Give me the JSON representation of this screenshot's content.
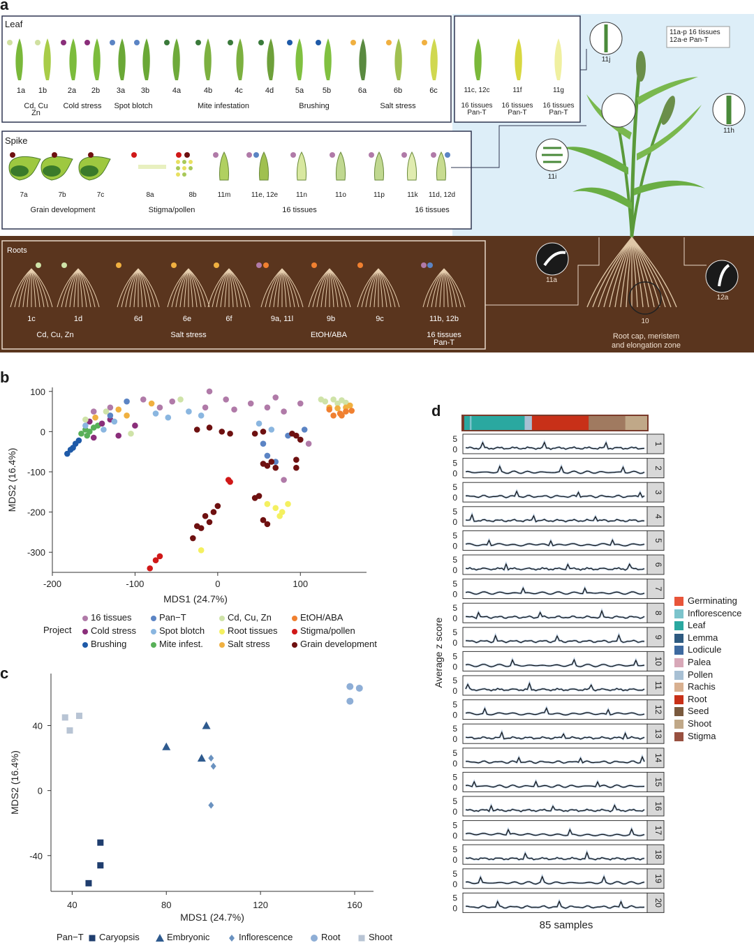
{
  "panel_a": {
    "letter": "a",
    "leaf": {
      "title": "Leaf",
      "samples": [
        "1a",
        "1b",
        "2a",
        "2b",
        "3a",
        "3b",
        "4a",
        "4b",
        "4c",
        "4d",
        "5a",
        "5b",
        "6a",
        "6b",
        "6c"
      ],
      "groups": [
        "Cd, Cu\nZn",
        "Cold stress",
        "Spot blotch",
        "Mite infestation",
        "Brushing",
        "Salt stress"
      ]
    },
    "leaf_pan": {
      "samples": [
        "11c, 12c",
        "11f",
        "11g"
      ],
      "groups": [
        "16 tissues\nPan-T",
        "16 tissues\nPan-T",
        "16 tissues\nPan-T"
      ]
    },
    "spike": {
      "title": "Spike",
      "samples": [
        "7a",
        "7b",
        "7c",
        "8a",
        "8b",
        "11m",
        "11e, 12e",
        "11n",
        "11o",
        "11p",
        "11k",
        "11d, 12d"
      ],
      "groups": [
        "Grain development",
        "Stigma/pollen",
        "16 tissues",
        "16 tissues"
      ]
    },
    "roots": {
      "title": "Roots",
      "samples": [
        "1c",
        "1d",
        "6d",
        "6e",
        "6f",
        "9a, 11l",
        "9b",
        "9c",
        "11b, 12b"
      ],
      "groups": [
        "Cd, Cu, Zn",
        "Salt stress",
        "EtOH/ABA",
        "16 tissues\nPan-T"
      ]
    },
    "plant": {
      "note": "11a-p 16 tissues\n12a-e Pan-T",
      "callouts": [
        "11j",
        "11h",
        "11i",
        "11a",
        "10",
        "12a"
      ],
      "root_label": "Root cap, meristem\nand elongation zone"
    }
  },
  "panel_b": {
    "letter": "b",
    "legend_title": "Project",
    "legend": [
      {
        "name": "16 tissues",
        "color": "#b07aa8"
      },
      {
        "name": "Pan−T",
        "color": "#5b84c4"
      },
      {
        "name": "Cd, Cu, Zn",
        "color": "#cfe3a8"
      },
      {
        "name": "EtOH/ABA",
        "color": "#f08030"
      },
      {
        "name": "Cold stress",
        "color": "#8a2e7a"
      },
      {
        "name": "Spot blotch",
        "color": "#8ab6e0"
      },
      {
        "name": "Root tissues",
        "color": "#f4f060"
      },
      {
        "name": "Stigma/pollen",
        "color": "#d01818"
      },
      {
        "name": "Brushing",
        "color": "#1e5aa8"
      },
      {
        "name": "Mite infest.",
        "color": "#58b058"
      },
      {
        "name": "Salt stress",
        "color": "#f0b040"
      },
      {
        "name": "Grain development",
        "color": "#6e1010"
      }
    ]
  },
  "panel_c": {
    "letter": "c",
    "legend_title": "Pan−T",
    "legend": [
      {
        "name": "Caryopsis",
        "shape": "square",
        "color": "#1f3d6e"
      },
      {
        "name": "Embryonic",
        "shape": "triangle",
        "color": "#2e5a8e"
      },
      {
        "name": "Inflorescence",
        "shape": "diamond",
        "color": "#6a92c0"
      },
      {
        "name": "Root",
        "shape": "circle",
        "color": "#8eaed6"
      },
      {
        "name": "Shoot",
        "shape": "square",
        "color": "#b8c4d4"
      }
    ]
  },
  "panel_d": {
    "letter": "d",
    "ylabel": "Average z score",
    "xlabel": "85 samples",
    "tick_top": "5",
    "tick_bottom": "0",
    "clusters": [
      "1",
      "2",
      "3",
      "4",
      "5",
      "6",
      "7",
      "8",
      "9",
      "10",
      "11",
      "12",
      "13",
      "14",
      "15",
      "16",
      "17",
      "18",
      "19",
      "20"
    ],
    "legend": [
      {
        "name": "Germinating",
        "color": "#e8553a"
      },
      {
        "name": "Inflorescence",
        "color": "#7cc4cc"
      },
      {
        "name": "Leaf",
        "color": "#2aa8a0"
      },
      {
        "name": "Lemma",
        "color": "#2e5a80"
      },
      {
        "name": "Lodicule",
        "color": "#3e6aa0"
      },
      {
        "name": "Palea",
        "color": "#d8a8b8"
      },
      {
        "name": "Pollen",
        "color": "#a8c0d4"
      },
      {
        "name": "Rachis",
        "color": "#d8b090"
      },
      {
        "name": "Root",
        "color": "#c83018"
      },
      {
        "name": "Seed",
        "color": "#7a5a3e"
      },
      {
        "name": "Shoot",
        "color": "#c0a888"
      },
      {
        "name": "Stigma",
        "color": "#985040"
      }
    ]
  },
  "chart_data": [
    {
      "type": "scatter",
      "panel": "b",
      "xlabel": "MDS1 (24.7%)",
      "ylabel": "MDS2 (16.4%)",
      "xlim": [
        -200,
        180
      ],
      "ylim": [
        -350,
        110
      ],
      "xticks": [
        -200,
        -100,
        0,
        100
      ],
      "yticks": [
        100,
        0,
        -100,
        -200,
        -300
      ],
      "series": [
        {
          "name": "Brushing",
          "points": [
            [
              -182,
              -55
            ],
            [
              -178,
              -45
            ],
            [
              -175,
              -40
            ],
            [
              -172,
              -30
            ],
            [
              -168,
              -22
            ]
          ]
        },
        {
          "name": "Mite infest.",
          "points": [
            [
              -165,
              -5
            ],
            [
              -160,
              5
            ],
            [
              -158,
              -10
            ],
            [
              -155,
              0
            ],
            [
              -150,
              10
            ],
            [
              -145,
              15
            ]
          ]
        },
        {
          "name": "Cold stress",
          "points": [
            [
              -150,
              -15
            ],
            [
              -140,
              20
            ],
            [
              -130,
              30
            ],
            [
              -120,
              -10
            ],
            [
              -100,
              15
            ],
            [
              -155,
              25
            ]
          ]
        },
        {
          "name": "Spot blotch",
          "points": [
            [
              -160,
              15
            ],
            [
              -138,
              5
            ],
            [
              -125,
              25
            ],
            [
              -75,
              45
            ],
            [
              -60,
              35
            ],
            [
              -35,
              50
            ],
            [
              -20,
              40
            ],
            [
              50,
              20
            ],
            [
              65,
              5
            ]
          ]
        },
        {
          "name": "16 tissues",
          "points": [
            [
              -90,
              80
            ],
            [
              -70,
              60
            ],
            [
              -55,
              75
            ],
            [
              -10,
              100
            ],
            [
              -15,
              60
            ],
            [
              10,
              80
            ],
            [
              20,
              55
            ],
            [
              70,
              85
            ],
            [
              80,
              50
            ],
            [
              100,
              70
            ],
            [
              60,
              60
            ],
            [
              40,
              70
            ],
            [
              -130,
              60
            ],
            [
              -150,
              50
            ],
            [
              100,
              -20
            ],
            [
              110,
              -30
            ],
            [
              80,
              -120
            ]
          ]
        },
        {
          "name": "Pan−T",
          "points": [
            [
              60,
              -60
            ],
            [
              55,
              -30
            ],
            [
              70,
              -75
            ],
            [
              85,
              -10
            ],
            [
              -110,
              75
            ],
            [
              -130,
              40
            ],
            [
              105,
              5
            ]
          ]
        },
        {
          "name": "Cd, Cu, Zn",
          "points": [
            [
              130,
              75
            ],
            [
              140,
              80
            ],
            [
              150,
              78
            ],
            [
              145,
              70
            ],
            [
              155,
              72
            ],
            [
              125,
              80
            ],
            [
              -160,
              30
            ],
            [
              -135,
              50
            ],
            [
              -105,
              -5
            ],
            [
              -45,
              80
            ]
          ]
        },
        {
          "name": "Salt stress",
          "points": [
            [
              135,
              60
            ],
            [
              145,
              58
            ],
            [
              155,
              60
            ],
            [
              160,
              65
            ],
            [
              -110,
              40
            ],
            [
              -148,
              35
            ],
            [
              -120,
              55
            ],
            [
              -80,
              70
            ]
          ]
        },
        {
          "name": "EtOH/ABA",
          "points": [
            [
              135,
              55
            ],
            [
              140,
              40
            ],
            [
              148,
              45
            ],
            [
              155,
              50
            ],
            [
              162,
              52
            ],
            [
              150,
              40
            ]
          ]
        },
        {
          "name": "Root tissues",
          "points": [
            [
              60,
              -180
            ],
            [
              70,
              -190
            ],
            [
              78,
              -200
            ],
            [
              85,
              -180
            ],
            [
              75,
              -210
            ],
            [
              -20,
              -295
            ]
          ]
        },
        {
          "name": "Stigma/pollen",
          "points": [
            [
              15,
              -125
            ],
            [
              13,
              -120
            ],
            [
              -70,
              -310
            ],
            [
              -75,
              -320
            ],
            [
              -82,
              -340
            ]
          ]
        },
        {
          "name": "Grain development",
          "points": [
            [
              -25,
              5
            ],
            [
              -10,
              10
            ],
            [
              5,
              0
            ],
            [
              15,
              -5
            ],
            [
              45,
              -5
            ],
            [
              55,
              0
            ],
            [
              90,
              -5
            ],
            [
              95,
              -10
            ],
            [
              100,
              -20
            ],
            [
              55,
              -80
            ],
            [
              60,
              -85
            ],
            [
              65,
              -75
            ],
            [
              70,
              -90
            ],
            [
              95,
              -70
            ],
            [
              95,
              -90
            ],
            [
              0,
              -185
            ],
            [
              -5,
              -200
            ],
            [
              -15,
              -210
            ],
            [
              -10,
              -225
            ],
            [
              -20,
              -240
            ],
            [
              -30,
              -265
            ],
            [
              50,
              -160
            ],
            [
              55,
              -220
            ],
            [
              60,
              -230
            ],
            [
              45,
              -165
            ],
            [
              -25,
              -235
            ]
          ]
        }
      ]
    },
    {
      "type": "scatter",
      "panel": "c",
      "xlabel": "MDS1 (24.7%)",
      "ylabel": "MDS2 (16.4%)",
      "xlim": [
        31,
        168
      ],
      "ylim": [
        -62,
        72
      ],
      "xticks": [
        40,
        80,
        120,
        160
      ],
      "yticks": [
        40,
        0,
        -40
      ],
      "series": [
        {
          "name": "Caryopsis",
          "points": [
            [
              52,
              -32
            ],
            [
              52,
              -46
            ],
            [
              47,
              -57
            ]
          ]
        },
        {
          "name": "Embryonic",
          "points": [
            [
              80,
              27
            ],
            [
              95,
              20
            ],
            [
              97,
              40
            ]
          ]
        },
        {
          "name": "Inflorescence",
          "points": [
            [
              99,
              20
            ],
            [
              100,
              15
            ],
            [
              99,
              -9
            ]
          ]
        },
        {
          "name": "Root",
          "points": [
            [
              158,
              64
            ],
            [
              162,
              63
            ],
            [
              158,
              55
            ]
          ]
        },
        {
          "name": "Shoot",
          "points": [
            [
              37,
              45
            ],
            [
              43,
              46
            ],
            [
              39,
              37
            ]
          ]
        }
      ]
    }
  ]
}
